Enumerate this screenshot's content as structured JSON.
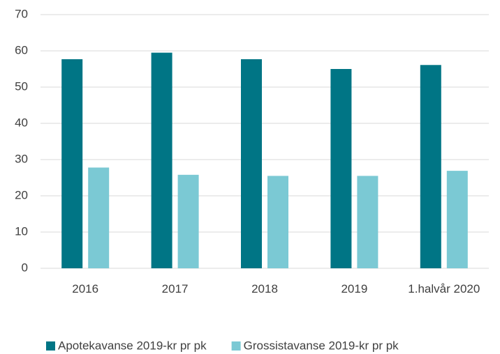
{
  "chart_data": {
    "type": "bar",
    "categories": [
      "2016",
      "2017",
      "2018",
      "2019",
      "1.halvår 2020"
    ],
    "series": [
      {
        "name": "Apotekavanse 2019-kr pr pk",
        "color": "#007585",
        "values": [
          57.7,
          59.5,
          57.7,
          55.0,
          56.1
        ]
      },
      {
        "name": "Grossistavanse 2019-kr pr pk",
        "color": "#7bc9d4",
        "values": [
          27.8,
          25.8,
          25.5,
          25.5,
          26.9
        ]
      }
    ],
    "ylim": [
      0,
      70
    ],
    "yticks": [
      0,
      10,
      20,
      30,
      40,
      50,
      60,
      70
    ],
    "grid": true,
    "legend": "bottom"
  }
}
